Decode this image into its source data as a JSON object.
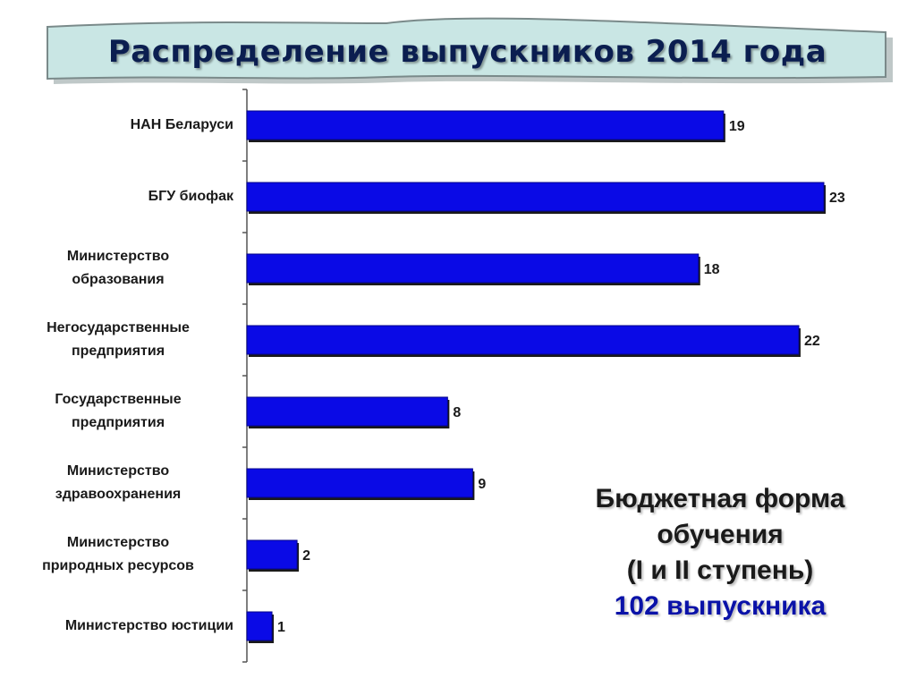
{
  "title": "Распределение выпускников 2014 года",
  "note": {
    "line1": "Бюджетная форма",
    "line2": "обучения",
    "line3": "(I и II ступень)",
    "line4": "102 выпускника"
  },
  "colors": {
    "bar": "#0a0ae6",
    "bar_edge": "#1a1a1a",
    "banner_fill": "#c9e6e4",
    "title_color": "#0b1e50",
    "total_color": "#0a12a8"
  },
  "chart_data": {
    "type": "bar",
    "orientation": "horizontal",
    "categories": [
      "НАН Беларуси",
      "БГУ биофак",
      "Министерство образования",
      "Негосударственные предприятия",
      "Государственные предприятия",
      "Министерство здравоохранения",
      "Министерство природных ресурсов",
      "Министерство юстиции"
    ],
    "category_lines": [
      [
        "НАН Беларуси"
      ],
      [
        "БГУ биофак"
      ],
      [
        "Министерство",
        "образования"
      ],
      [
        "Негосударственные",
        "предприятия"
      ],
      [
        "Государственные",
        "предприятия"
      ],
      [
        "Министерство",
        "здравоохранения"
      ],
      [
        "Министерство",
        "природных ресурсов"
      ],
      [
        "Министерство юстиции"
      ]
    ],
    "values": [
      19,
      23,
      18,
      22,
      8,
      9,
      2,
      1
    ],
    "xlim": [
      0,
      23
    ],
    "grid": false,
    "legend": "none",
    "data_labels": true
  }
}
